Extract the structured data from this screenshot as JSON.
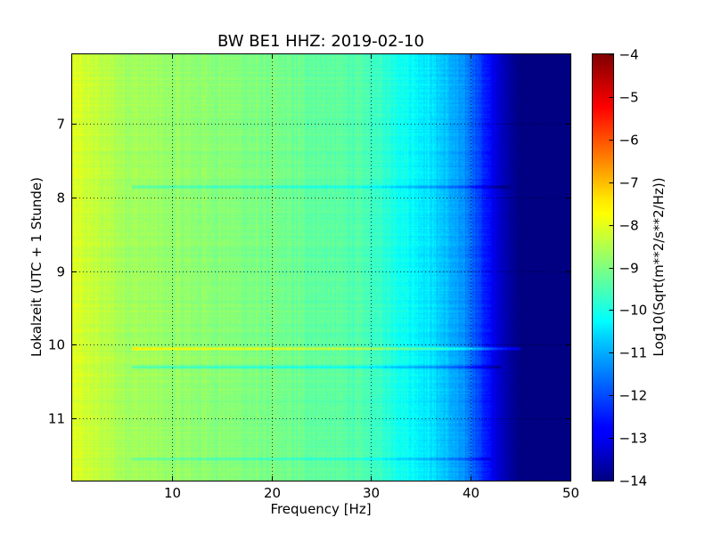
{
  "chart_data": {
    "type": "heatmap",
    "title": "BW BE1 HHZ: 2019-02-10",
    "xlabel": "Frequency [Hz]",
    "ylabel": "Lokalzeit (UTC + 1 Stunde)",
    "xlim": [
      0,
      50
    ],
    "ylim": [
      6.05,
      11.85
    ],
    "y_inverted": true,
    "x_ticks": [
      10,
      20,
      30,
      40,
      50
    ],
    "x_tick_labels": [
      "10",
      "20",
      "30",
      "40",
      "50"
    ],
    "y_ticks": [
      7,
      8,
      9,
      10,
      11
    ],
    "y_tick_labels": [
      "7",
      "8",
      "9",
      "10",
      "11"
    ],
    "grid": true,
    "colorbar": {
      "label": "Log10(Sqrt(m**2/s**2/Hz))",
      "range": [
        -14,
        -4
      ],
      "ticks": [
        -4,
        -5,
        -6,
        -7,
        -8,
        -9,
        -10,
        -11,
        -12,
        -13,
        -14
      ],
      "tick_labels": [
        "−4",
        "−5",
        "−6",
        "−7",
        "−8",
        "−9",
        "−10",
        "−11",
        "−12",
        "−13",
        "−14"
      ],
      "colormap": "jet"
    },
    "spectrum_profile": {
      "frequency_hz": [
        0,
        2,
        5,
        10,
        15,
        20,
        25,
        28,
        30,
        32,
        34,
        36,
        38,
        40,
        41,
        42,
        43,
        44,
        45,
        50
      ],
      "log10_amplitude": [
        -8.1,
        -8.3,
        -8.6,
        -8.8,
        -8.9,
        -9.1,
        -9.3,
        -9.4,
        -9.6,
        -9.9,
        -10.2,
        -10.5,
        -11.0,
        -11.6,
        -12.2,
        -12.8,
        -13.3,
        -13.7,
        -14,
        -14
      ]
    },
    "horizontal_lines": [
      {
        "time": 7.85,
        "log10_offset": -0.9,
        "f_max_hz": 44
      },
      {
        "time": 10.05,
        "log10_offset": 1.2,
        "f_max_hz": 45
      },
      {
        "time": 10.3,
        "log10_offset": -0.9,
        "f_max_hz": 43
      },
      {
        "time": 11.55,
        "log10_offset": -0.6,
        "f_max_hz": 42
      }
    ]
  }
}
